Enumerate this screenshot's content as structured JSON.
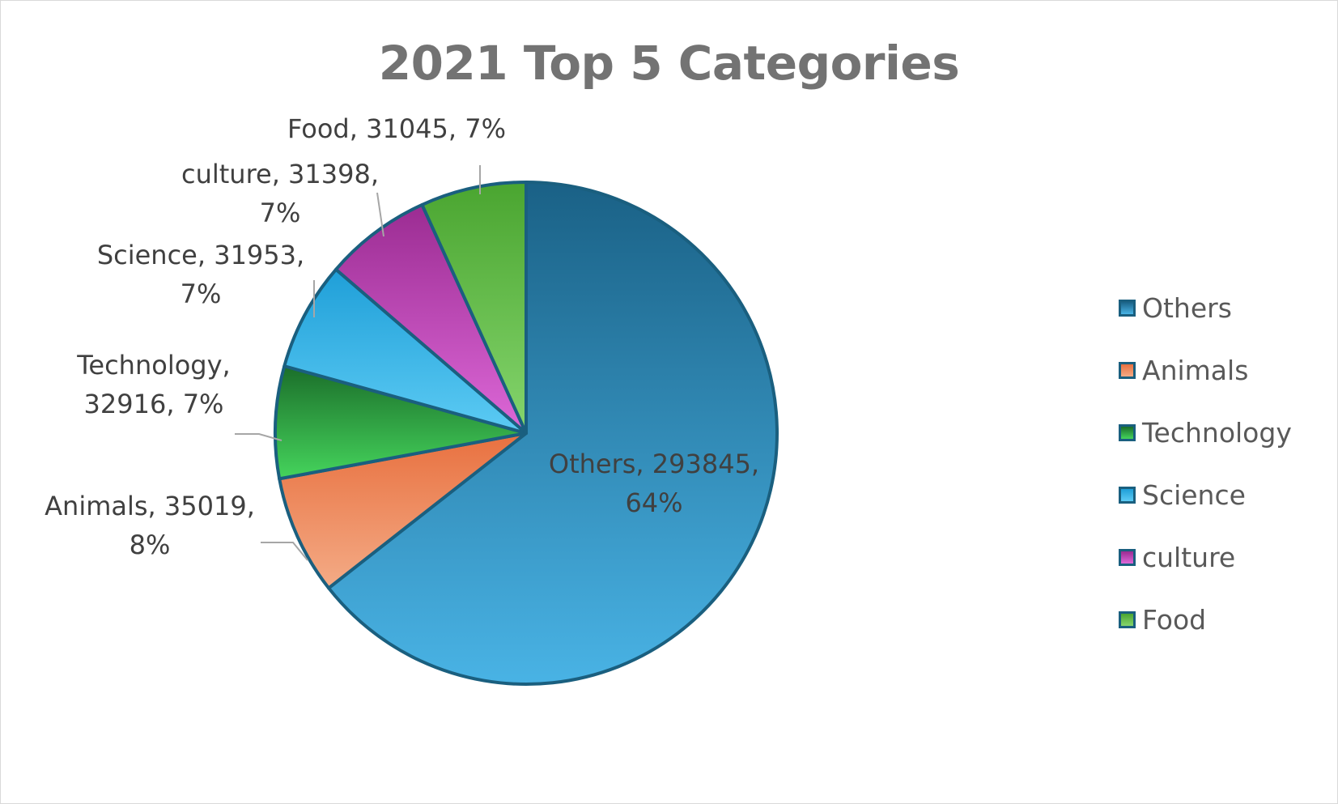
{
  "chart_data": {
    "type": "pie",
    "title": "2021 Top 5 Categories",
    "slices": [
      {
        "name": "Others",
        "value": 293845,
        "percent": "64%",
        "color_top": "#1a6186",
        "color_bottom": "#49b3e5",
        "label_lines": [
          "Others, 293845,",
          "64%"
        ]
      },
      {
        "name": "Animals",
        "value": 35019,
        "percent": "8%",
        "color_top": "#e8703f",
        "color_bottom": "#f4ab86",
        "label_lines": [
          "Animals, 35019,",
          "8%"
        ]
      },
      {
        "name": "Technology",
        "value": 32916,
        "percent": "7%",
        "color_top": "#1b6e2a",
        "color_bottom": "#45d45c",
        "label_lines": [
          "Technology,",
          "32916, 7%"
        ]
      },
      {
        "name": "Science",
        "value": 31953,
        "percent": "7%",
        "color_top": "#1f9fd8",
        "color_bottom": "#5ccbf4",
        "label_lines": [
          "Science, 31953,",
          "7%"
        ]
      },
      {
        "name": "culture",
        "value": 31398,
        "percent": "7%",
        "color_top": "#9b2c92",
        "color_bottom": "#dd68d8",
        "label_lines": [
          "culture, 31398,",
          "7%"
        ]
      },
      {
        "name": "Food",
        "value": 31045,
        "percent": "7%",
        "color_top": "#4aa530",
        "color_bottom": "#85d56d",
        "label_lines": [
          "Food, 31045, 7%"
        ]
      }
    ],
    "border_color": "#1a5f7f",
    "leader_color": "#a6a6a6",
    "legend_position": "right"
  }
}
